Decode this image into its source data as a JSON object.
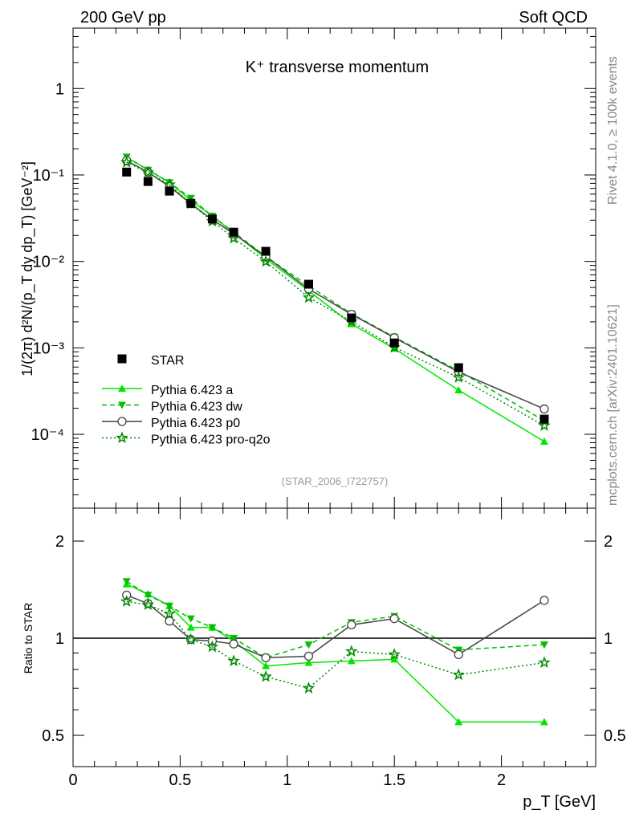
{
  "header": {
    "left": "200 GeV pp",
    "right": "Soft QCD"
  },
  "side": {
    "top": "Rivet 4.1.0, ≥ 100k events",
    "bottom": "mcplots.cern.ch [arXiv:2401.10621]"
  },
  "chart_data": [
    {
      "type": "scatter",
      "title": "K⁺ transverse momentum",
      "ylabel": "1/(2π)  d²N/(p_T dy dp_T) [GeV⁻²]",
      "yscale": "log",
      "ylim": [
        1.4e-05,
        5.0
      ],
      "xlim": [
        0,
        2.44
      ],
      "ytick_labels": [
        "1",
        "10⁻¹",
        "10⁻²",
        "10⁻³",
        "10⁻⁴"
      ],
      "ytick_values": [
        1,
        0.1,
        0.01,
        0.001,
        0.0001
      ],
      "legend_position": "bottom-left",
      "watermark": "(STAR_2006_I722757)",
      "x": [
        0.25,
        0.35,
        0.45,
        0.55,
        0.65,
        0.75,
        0.9,
        1.1,
        1.3,
        1.5,
        1.8,
        2.2
      ],
      "star": {
        "name": "STAR",
        "values": [
          0.108,
          0.084,
          0.065,
          0.047,
          0.031,
          0.0218,
          0.0131,
          0.00545,
          0.00222,
          0.00114,
          0.00059,
          0.00015
        ]
      },
      "series": [
        {
          "name": "Pythia 6.423 a",
          "color": "#00e600",
          "dash": "",
          "marker": "triangle-up",
          "ratio": [
            1.47,
            1.37,
            1.26,
            1.08,
            1.08,
            0.98,
            0.82,
            0.84,
            0.85,
            0.86,
            0.55,
            0.55
          ]
        },
        {
          "name": "Pythia 6.423 dw",
          "color": "#00c000",
          "dash": "6,4",
          "marker": "triangle-down",
          "ratio": [
            1.5,
            1.36,
            1.26,
            1.15,
            1.08,
            1.0,
            0.87,
            0.955,
            1.12,
            1.17,
            0.92,
            0.955
          ]
        },
        {
          "name": "Pythia 6.423 p0",
          "color": "#444444",
          "dash": "",
          "marker": "circle",
          "ratio": [
            1.36,
            1.28,
            1.13,
            0.99,
            0.98,
            0.96,
            0.87,
            0.88,
            1.1,
            1.15,
            0.89,
            1.31
          ]
        },
        {
          "name": "Pythia 6.423 pro-q2o",
          "color": "#008800",
          "dash": "2,3",
          "marker": "star",
          "ratio": [
            1.3,
            1.27,
            1.19,
            0.99,
            0.94,
            0.85,
            0.76,
            0.7,
            0.91,
            0.89,
            0.77,
            0.84
          ]
        }
      ]
    },
    {
      "type": "line",
      "ylabel": "Ratio to STAR",
      "yscale": "log",
      "ylim": [
        0.4,
        2.53
      ],
      "xlim": [
        0,
        2.44
      ],
      "ytick_labels": [
        "2",
        "1",
        "0.5"
      ],
      "ytick_values": [
        2,
        1,
        0.5
      ],
      "xtick_labels": [
        "0",
        "0.5",
        "1",
        "1.5",
        "2"
      ],
      "xtick_values": [
        0,
        0.5,
        1,
        1.5,
        2
      ],
      "xlabel": "p_T [GeV]"
    }
  ]
}
